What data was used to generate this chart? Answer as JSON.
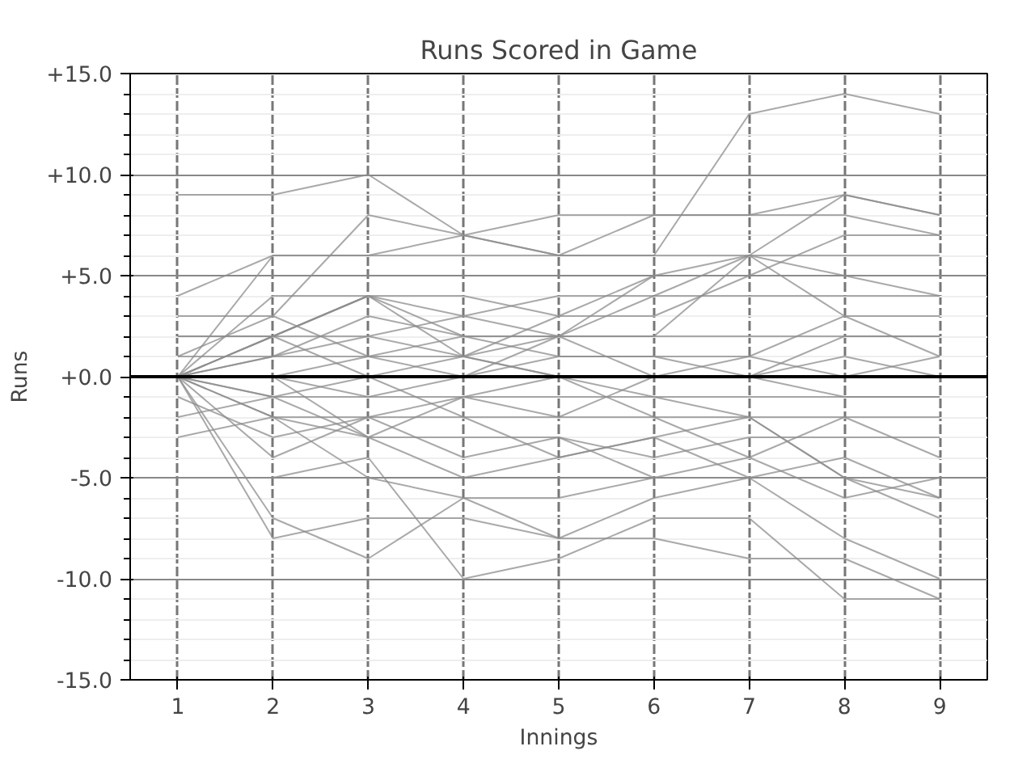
{
  "chart_data": {
    "type": "line",
    "title": "Runs Scored in Game",
    "xlabel": "Innings",
    "ylabel": "Runs",
    "x": [
      1,
      2,
      3,
      4,
      5,
      6,
      7,
      8,
      9
    ],
    "xlim": [
      0.5,
      9.5
    ],
    "xticks": [
      1,
      2,
      3,
      4,
      5,
      6,
      7,
      8,
      9
    ],
    "ylim": [
      -15,
      15
    ],
    "yticks": [
      {
        "value": -15,
        "label": "-15.0"
      },
      {
        "value": -10,
        "label": "-10.0"
      },
      {
        "value": -5,
        "label": "-5.0"
      },
      {
        "value": 0,
        "label": "+0.0"
      },
      {
        "value": 5,
        "label": "+5.0"
      },
      {
        "value": 10,
        "label": "+10.0"
      },
      {
        "value": 15,
        "label": "+15.0"
      }
    ],
    "grid": true,
    "line_style": "solid",
    "ref_lines": [
      {
        "axis": "y",
        "value": 0,
        "color": "#000000"
      }
    ],
    "series": [
      {
        "color": "#8c8c8c",
        "values": [
          9,
          9,
          10,
          7,
          6,
          6,
          13,
          14,
          13
        ]
      },
      {
        "color": "#8c8c8c",
        "values": [
          4,
          6,
          6,
          6,
          6,
          6,
          6,
          6,
          6
        ]
      },
      {
        "color": "#8c8c8c",
        "values": [
          3,
          3,
          8,
          7,
          6,
          8,
          8,
          9,
          8
        ]
      },
      {
        "color": "#8c8c8c",
        "values": [
          0,
          6,
          6,
          7,
          8,
          8,
          8,
          8,
          7
        ]
      },
      {
        "color": "#8c8c8c",
        "values": [
          0,
          2,
          4,
          4,
          3,
          5,
          6,
          9,
          8
        ]
      },
      {
        "color": "#8c8c8c",
        "values": [
          2,
          2,
          4,
          3,
          2,
          5,
          5,
          7,
          7
        ]
      },
      {
        "color": "#8c8c8c",
        "values": [
          0,
          4,
          4,
          2,
          2,
          4,
          6,
          5,
          5
        ]
      },
      {
        "color": "#8c8c8c",
        "values": [
          2,
          2,
          2,
          3,
          4,
          4,
          4,
          4,
          4
        ]
      },
      {
        "color": "#8c8c8c",
        "values": [
          1,
          1,
          1,
          2,
          2,
          2,
          2,
          2,
          2
        ]
      },
      {
        "color": "#8c8c8c",
        "values": [
          0,
          1,
          3,
          2,
          1,
          1,
          0,
          1,
          0
        ]
      },
      {
        "color": "#8c8c8c",
        "values": [
          0,
          0,
          1,
          1,
          3,
          3,
          5,
          5,
          4
        ]
      },
      {
        "color": "#8c8c8c",
        "values": [
          0,
          1,
          2,
          1,
          0,
          -1,
          -2,
          -5,
          -7
        ]
      },
      {
        "color": "#8c8c8c",
        "values": [
          0,
          2,
          4,
          1,
          2,
          0,
          0,
          2,
          2
        ]
      },
      {
        "color": "#8c8c8c",
        "values": [
          0,
          0,
          -1,
          0,
          1,
          1,
          1,
          3,
          3
        ]
      },
      {
        "color": "#8c8c8c",
        "values": [
          0,
          -1,
          -1,
          -1,
          -1,
          -1,
          -1,
          -1,
          -1
        ]
      },
      {
        "color": "#8c8c8c",
        "values": [
          0,
          -2,
          -2,
          -2,
          -2,
          -2,
          -2,
          -2,
          -2
        ]
      },
      {
        "color": "#8c8c8c",
        "values": [
          0,
          -2,
          -3,
          -3,
          -3,
          -4,
          -3,
          -3,
          -3
        ]
      },
      {
        "color": "#8c8c8c",
        "values": [
          0,
          0,
          -3,
          -5,
          -4,
          -3,
          -5,
          -5,
          -6
        ]
      },
      {
        "color": "#8c8c8c",
        "values": [
          0,
          -7,
          -9,
          -6,
          -8,
          -8,
          -9,
          -9,
          -11
        ]
      },
      {
        "color": "#8c8c8c",
        "values": [
          -5,
          -5,
          -4,
          -10,
          -9,
          -7,
          -7,
          -11,
          -11
        ]
      },
      {
        "color": "#8c8c8c",
        "values": [
          0,
          -8,
          -7,
          -7,
          -8,
          -6,
          -5,
          -8,
          -10
        ]
      },
      {
        "color": "#8c8c8c",
        "values": [
          -1,
          -3,
          -2,
          -4,
          -3,
          -5,
          -5,
          -4,
          -6
        ]
      },
      {
        "color": "#8c8c8c",
        "values": [
          0,
          -1,
          0,
          1,
          0,
          -2,
          -4,
          -2,
          -4
        ]
      },
      {
        "color": "#8c8c8c",
        "values": [
          -3,
          -2,
          -5,
          -6,
          -6,
          -5,
          -4,
          -6,
          -5
        ]
      },
      {
        "color": "#8c8c8c",
        "values": [
          0,
          -4,
          -2,
          -1,
          0,
          0,
          1,
          0,
          1
        ]
      },
      {
        "color": "#8c8c8c",
        "values": [
          1,
          3,
          1,
          0,
          2,
          2,
          6,
          3,
          1
        ]
      },
      {
        "color": "#8c8c8c",
        "values": [
          -2,
          -1,
          -3,
          -1,
          -2,
          0,
          0,
          -1,
          -1
        ]
      },
      {
        "color": "#8c8c8c",
        "values": [
          0,
          2,
          0,
          -2,
          -4,
          -3,
          -2,
          -5,
          -5
        ]
      }
    ]
  }
}
